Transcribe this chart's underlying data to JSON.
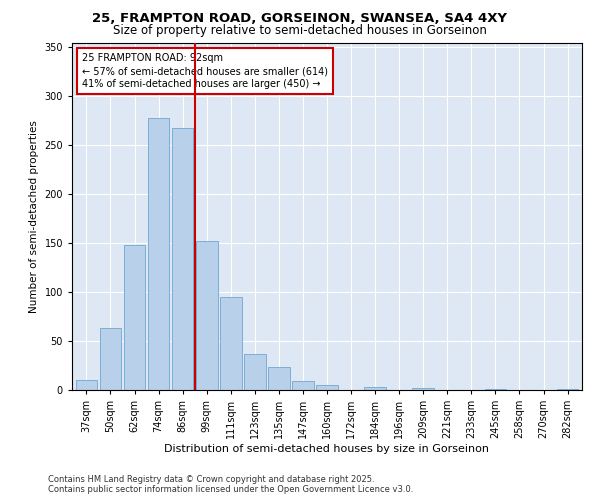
{
  "title1": "25, FRAMPTON ROAD, GORSEINON, SWANSEA, SA4 4XY",
  "title2": "Size of property relative to semi-detached houses in Gorseinon",
  "xlabel": "Distribution of semi-detached houses by size in Gorseinon",
  "ylabel": "Number of semi-detached properties",
  "categories": [
    "37sqm",
    "50sqm",
    "62sqm",
    "74sqm",
    "86sqm",
    "99sqm",
    "111sqm",
    "123sqm",
    "135sqm",
    "147sqm",
    "160sqm",
    "172sqm",
    "184sqm",
    "196sqm",
    "209sqm",
    "221sqm",
    "233sqm",
    "245sqm",
    "258sqm",
    "270sqm",
    "282sqm"
  ],
  "values": [
    10,
    63,
    148,
    278,
    268,
    152,
    95,
    37,
    24,
    9,
    5,
    0,
    3,
    0,
    2,
    0,
    0,
    1,
    0,
    0,
    1
  ],
  "bar_color": "#b8d0ea",
  "bar_edge_color": "#7bafd4",
  "red_line_x": 4.5,
  "annotation_title": "25 FRAMPTON ROAD: 92sqm",
  "annotation_line1": "← 57% of semi-detached houses are smaller (614)",
  "annotation_line2": "41% of semi-detached houses are larger (450) →",
  "red_line_color": "#cc0000",
  "ylim": [
    0,
    355
  ],
  "yticks": [
    0,
    50,
    100,
    150,
    200,
    250,
    300,
    350
  ],
  "footnote1": "Contains HM Land Registry data © Crown copyright and database right 2025.",
  "footnote2": "Contains public sector information licensed under the Open Government Licence v3.0.",
  "bg_color": "#dde8f4",
  "title1_fontsize": 9.5,
  "title2_fontsize": 8.5,
  "ylabel_fontsize": 7.5,
  "xlabel_fontsize": 8,
  "tick_fontsize": 7,
  "annot_fontsize": 7,
  "footnote_fontsize": 6
}
